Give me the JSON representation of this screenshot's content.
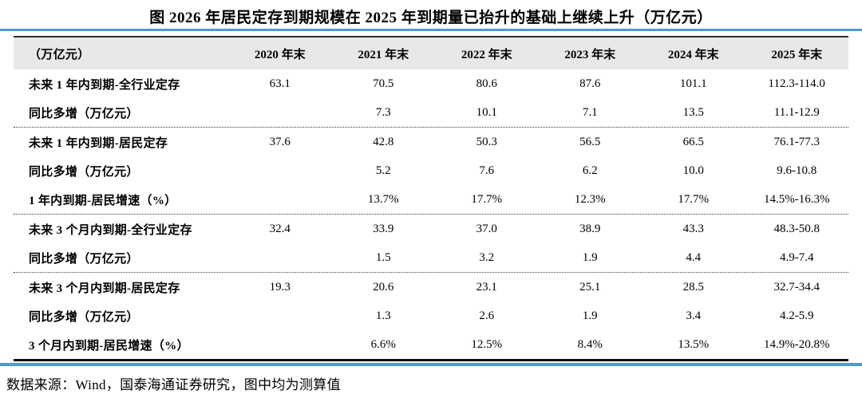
{
  "title": "图  2026 年居民定存到期规模在 2025 年到期量已抬升的基础上继续上升（万亿元）",
  "source_note": "数据来源：Wind，国泰海通证券研究，图中均为测算值",
  "colors": {
    "accent_blue": "#4e9ad3",
    "header_bg": "#e8e8e8",
    "table_border_dark": "#101010"
  },
  "chart_data": {
    "type": "table",
    "title": "图 2026 年居民定存到期规模在 2025 年到期量已抬升的基础上继续上升（万亿元）",
    "unit_header": "（万亿元）",
    "columns": [
      "2020 年末",
      "2021 年末",
      "2022 年末",
      "2023 年末",
      "2024 年末",
      "2025 年末"
    ],
    "groups": [
      {
        "rows": [
          {
            "label": "未来 1 年内到期-全行业定存",
            "values": [
              "63.1",
              "70.5",
              "80.6",
              "87.6",
              "101.1",
              "112.3-114.0"
            ]
          },
          {
            "label": "同比多增（万亿元）",
            "values": [
              "",
              "7.3",
              "10.1",
              "7.1",
              "13.5",
              "11.1-12.9"
            ]
          }
        ]
      },
      {
        "rows": [
          {
            "label": "未来 1 年内到期-居民定存",
            "values": [
              "37.6",
              "42.8",
              "50.3",
              "56.5",
              "66.5",
              "76.1-77.3"
            ]
          },
          {
            "label": "同比多增（万亿元）",
            "values": [
              "",
              "5.2",
              "7.6",
              "6.2",
              "10.0",
              "9.6-10.8"
            ]
          },
          {
            "label": "1 年内到期-居民增速（%）",
            "values": [
              "",
              "13.7%",
              "17.7%",
              "12.3%",
              "17.7%",
              "14.5%-16.3%"
            ]
          }
        ]
      },
      {
        "rows": [
          {
            "label": "未来 3 个月内到期-全行业定存",
            "values": [
              "32.4",
              "33.9",
              "37.0",
              "38.9",
              "43.3",
              "48.3-50.8"
            ]
          },
          {
            "label": "同比多增（万亿元）",
            "values": [
              "",
              "1.5",
              "3.2",
              "1.9",
              "4.4",
              "4.9-7.4"
            ]
          }
        ]
      },
      {
        "rows": [
          {
            "label": "未来 3 个月内到期-居民定存",
            "values": [
              "19.3",
              "20.6",
              "23.1",
              "25.1",
              "28.5",
              "32.7-34.4"
            ]
          },
          {
            "label": "同比多增（万亿元）",
            "values": [
              "",
              "1.3",
              "2.6",
              "1.9",
              "3.4",
              "4.2-5.9"
            ]
          },
          {
            "label": "3 个月内到期-居民增速（%）",
            "values": [
              "",
              "6.6%",
              "12.5%",
              "8.4%",
              "13.5%",
              "14.9%-20.8%"
            ]
          }
        ]
      }
    ]
  }
}
